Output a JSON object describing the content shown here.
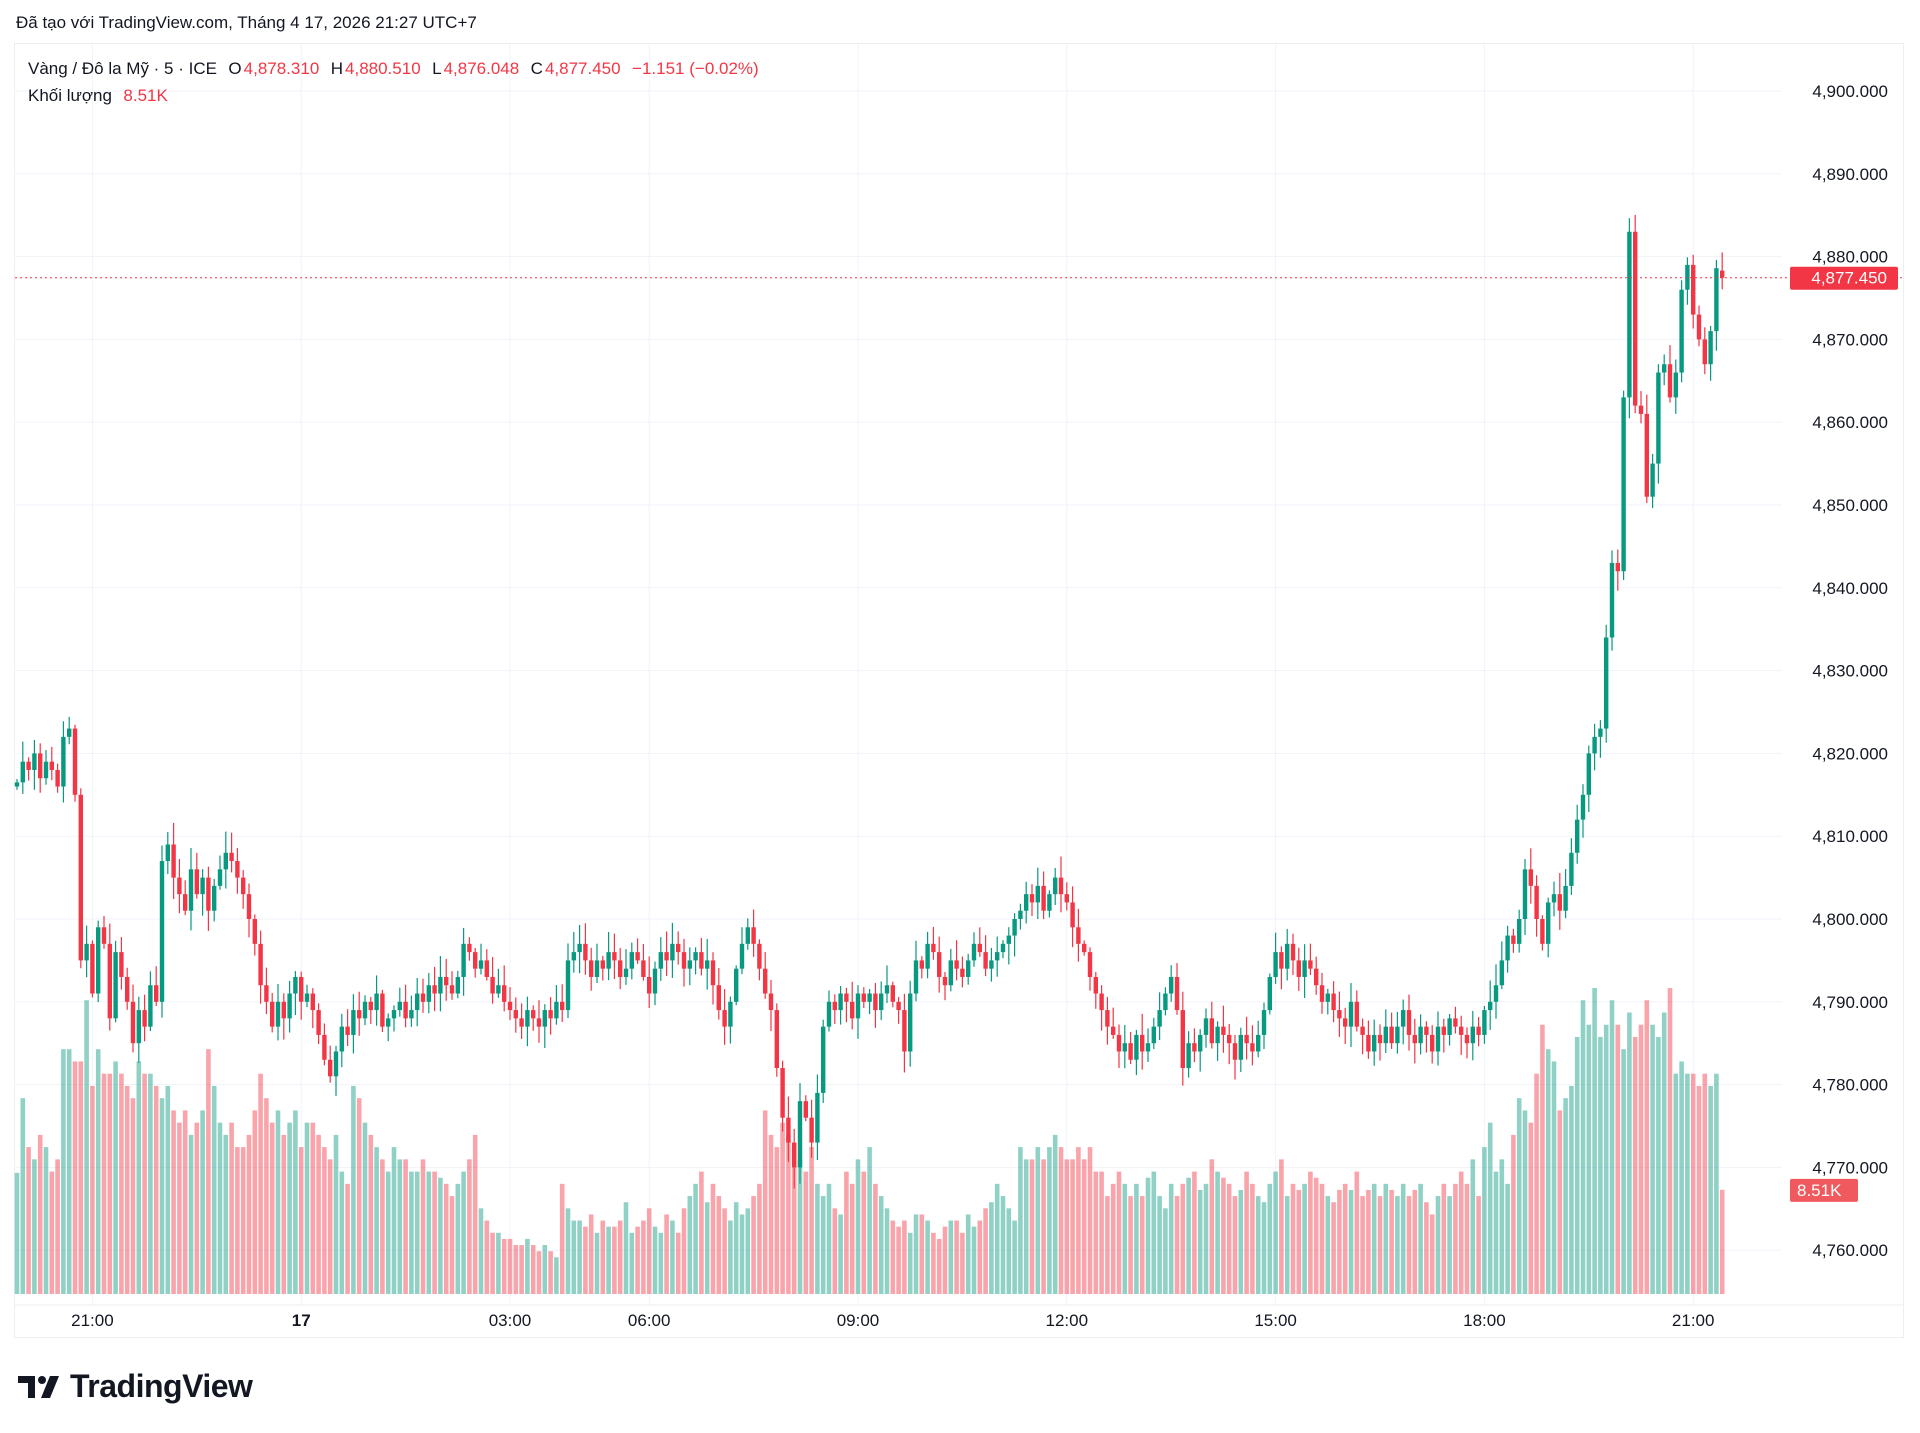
{
  "credit": "Đã tạo với TradingView.com, Tháng 4 17, 2026 21:27 UTC+7",
  "legend": {
    "symbol": "Vàng / Đô la Mỹ · 5 · ICE",
    "open_label": "O",
    "open": "4,878.310",
    "high_label": "H",
    "high": "4,880.510",
    "low_label": "L",
    "low": "4,876.048",
    "close_label": "C",
    "close": "4,877.450",
    "change": "−1.151 (−0.02%)",
    "volume_label": "Khối lượng",
    "volume": "8.51K"
  },
  "logo_text": "TradingView",
  "colors": {
    "up": "#089981",
    "down": "#f23645",
    "grid": "#f0f3fa",
    "text": "#131722"
  },
  "chart_data": {
    "type": "candlestick",
    "price_axis": {
      "min": 4760,
      "max": 4900,
      "step": 10,
      "tick_labels": [
        "4,760.000",
        "4,770.000",
        "4,780.000",
        "4,790.000",
        "4,800.000",
        "4,810.000",
        "4,820.000",
        "4,830.000",
        "4,840.000",
        "4,850.000",
        "4,860.000",
        "4,870.000",
        "4,880.000",
        "4,890.000",
        "4,900.000"
      ]
    },
    "last_price": 4877.45,
    "last_price_label": "4,877.450",
    "last_volume_label": "8.51K",
    "x_ticks": [
      {
        "label": "21:00",
        "bar": 13
      },
      {
        "label": "17",
        "bar": 49,
        "bold": true
      },
      {
        "label": "03:00",
        "bar": 85
      },
      {
        "label": "06:00",
        "bar": 109
      },
      {
        "label": "09:00",
        "bar": 145
      },
      {
        "label": "12:00",
        "bar": 181
      },
      {
        "label": "15:00",
        "bar": 217
      },
      {
        "label": "18:00",
        "bar": 253
      },
      {
        "label": "21:00",
        "bar": 289
      }
    ],
    "closes": [
      4816.5,
      4819,
      4818,
      4820,
      4817,
      4819,
      4818,
      4816,
      4822,
      4823,
      4815,
      4795,
      4797,
      4791,
      4799,
      4797,
      4788,
      4796,
      4793,
      4790,
      4785,
      4789,
      4787,
      4792,
      4790,
      4807,
      4809,
      4805,
      4803,
      4801,
      4806,
      4803,
      4805,
      4801,
      4804,
      4806,
      4808,
      4807,
      4805,
      4803,
      4800,
      4797,
      4792,
      4790,
      4787,
      4790,
      4788,
      4791,
      4793,
      4790,
      4791,
      4789,
      4786,
      4783,
      4781,
      4784,
      4787,
      4786,
      4789,
      4788,
      4790,
      4789,
      4791,
      4787,
      4788,
      4789,
      4790,
      4788,
      4789,
      4791,
      4790,
      4792,
      4791,
      4793,
      4792,
      4791,
      4793,
      4797,
      4796,
      4794,
      4795,
      4793,
      4791,
      4792,
      4790,
      4789,
      4788,
      4787,
      4789,
      4788,
      4787,
      4789,
      4788,
      4790,
      4789,
      4795,
      4796,
      4797,
      4795,
      4793,
      4795,
      4794,
      4796,
      4795,
      4793,
      4794,
      4796,
      4795,
      4793,
      4791,
      4794,
      4796,
      4795,
      4797,
      4796,
      4794,
      4795,
      4796,
      4794,
      4795,
      4792,
      4789,
      4787,
      4790,
      4794,
      4797,
      4799,
      4797,
      4794,
      4791,
      4789,
      4782,
      4776,
      4773,
      4770,
      4778,
      4776,
      4773,
      4779,
      4787,
      4790,
      4789,
      4791,
      4790,
      4788,
      4791,
      4790,
      4791,
      4789,
      4791,
      4792,
      4790,
      4789,
      4784,
      4791,
      4795,
      4794,
      4797,
      4796,
      4793,
      4792,
      4795,
      4794,
      4793,
      4795,
      4797,
      4796,
      4794,
      4795,
      4796,
      4797,
      4798,
      4800,
      4801,
      4803,
      4802,
      4804,
      4801,
      4803,
      4805,
      4803,
      4802,
      4799,
      4797,
      4796,
      4793,
      4791,
      4789,
      4787,
      4786,
      4784,
      4785,
      4783,
      4786,
      4784,
      4785,
      4787,
      4789,
      4791,
      4793,
      4789,
      4782,
      4785,
      4784,
      4786,
      4788,
      4785,
      4787,
      4786,
      4785,
      4783,
      4786,
      4785,
      4784,
      4786,
      4789,
      4793,
      4796,
      4794,
      4797,
      4795,
      4793,
      4795,
      4794,
      4792,
      4790,
      4791,
      4789,
      4788,
      4787,
      4790,
      4787,
      4786,
      4784,
      4786,
      4785,
      4787,
      4785,
      4787,
      4789,
      4786,
      4785,
      4787,
      4786,
      4784,
      4787,
      4786,
      4788,
      4787,
      4786,
      4785,
      4787,
      4786,
      4789,
      4790,
      4792,
      4795,
      4798,
      4797,
      4800,
      4806,
      4804,
      4800,
      4797,
      4802,
      4803,
      4801,
      4804,
      4808,
      4812,
      4815,
      4820,
      4822,
      4823,
      4834,
      4843,
      4842,
      4863,
      4883,
      4862,
      4861,
      4851,
      4855,
      4866,
      4867,
      4863,
      4866,
      4876,
      4879,
      4873,
      4870,
      4867,
      4871,
      4878.6,
      4877.45
    ],
    "volumes_k": [
      9.9,
      16,
      12,
      11,
      13,
      12,
      10,
      11,
      20,
      20,
      19,
      19,
      24,
      17,
      20,
      18,
      18,
      19,
      18,
      17,
      16,
      19,
      18,
      18,
      17,
      16,
      17,
      15,
      14,
      15,
      13,
      14,
      15,
      20,
      17,
      14,
      13,
      14,
      12,
      12,
      13,
      15,
      18,
      16,
      14,
      15,
      13,
      14,
      15,
      12,
      14,
      14,
      13,
      12,
      11,
      13,
      10,
      9,
      17,
      16,
      14,
      13,
      12,
      11,
      10,
      12,
      11,
      11,
      10,
      10,
      11,
      10,
      10,
      9.5,
      9,
      8,
      9,
      10,
      11,
      13,
      7,
      6,
      5,
      5,
      4.5,
      4.5,
      4,
      4,
      4.5,
      4,
      3.5,
      4,
      3.5,
      3,
      9,
      7,
      6,
      6,
      5.5,
      6.5,
      5,
      6,
      5.5,
      5.5,
      6,
      7.5,
      5,
      5.5,
      6,
      7,
      5.5,
      5,
      6.5,
      6,
      5,
      7,
      8,
      9,
      10,
      7.5,
      9,
      8,
      7,
      6,
      7.5,
      6.5,
      7,
      8,
      9,
      15,
      13,
      12,
      14,
      13,
      12,
      11,
      10,
      12,
      9,
      8,
      9,
      7,
      6.5,
      10,
      9,
      11,
      10,
      12,
      9,
      8,
      7,
      6,
      5.5,
      6,
      5,
      6.5,
      6.5,
      6,
      5,
      4.5,
      5.5,
      6,
      6,
      5,
      6.5,
      5.5,
      6,
      7,
      7.5,
      9,
      8,
      7,
      6,
      12,
      11,
      11,
      12,
      11,
      12,
      13,
      12,
      11,
      11,
      12,
      11,
      12,
      10,
      10,
      8,
      9,
      10,
      9,
      8,
      9,
      8,
      9.5,
      10,
      8,
      7,
      9,
      8,
      9,
      9.5,
      10,
      8.5,
      9,
      11,
      10,
      9.5,
      9,
      8,
      8.5,
      10,
      9,
      8,
      7.5,
      9,
      10,
      11,
      8,
      9,
      8.5,
      9,
      10,
      9.5,
      9,
      8,
      7.5,
      8.5,
      9,
      8.5,
      10,
      8,
      8.5,
      9,
      8,
      9,
      8.5,
      8,
      9,
      8,
      8.5,
      9,
      7.5,
      6.5,
      8,
      9,
      8,
      9,
      10,
      9,
      11,
      8,
      12,
      14,
      10,
      11,
      9,
      13,
      16,
      15,
      14,
      18,
      22,
      20,
      19,
      15,
      16,
      17,
      21,
      24,
      22,
      25,
      21,
      22,
      24,
      22,
      20,
      23,
      21,
      22,
      24,
      22,
      21,
      23,
      25,
      18,
      19,
      18,
      18,
      17,
      18,
      17,
      18,
      8.51
    ],
    "last_bar": {
      "open": 4878.31,
      "high": 4880.51,
      "low": 4876.048,
      "close": 4877.45
    }
  }
}
